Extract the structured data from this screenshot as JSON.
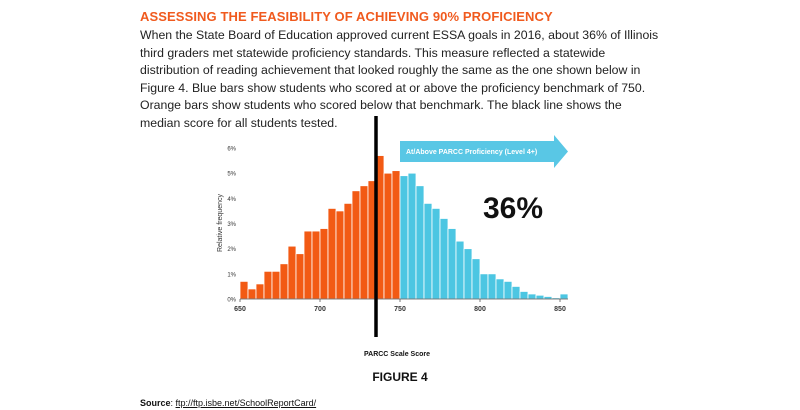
{
  "heading": "ASSESSING THE FEASIBILITY OF ACHIEVING 90% PROFICIENCY",
  "paragraph": "When the State Board of Education approved current ESSA goals in 2016, about 36% of Illinois third graders met statewide proficiency standards. This measure reflected a statewide distribution of reading achievement that looked roughly the same as the one shown below in Figure 4. Blue bars show students who scored at or above the proficiency benchmark of 750. Orange bars show students who scored below that benchmark. The black line shows the median score for all students tested.",
  "figure_label": "FIGURE 4",
  "source": {
    "label": "Source",
    "link_text": "ftp://ftp.isbe.net/SchoolReportCard/"
  },
  "colors": {
    "below": "#f25a14",
    "above": "#4cc6e2",
    "arrow": "#59c7e5",
    "median": "#000000",
    "heading": "#f05a1e"
  },
  "chart_data": {
    "type": "bar",
    "title": "",
    "xlabel": "PARCC Scale Score",
    "ylabel": "Relative frequency",
    "xlim": [
      650,
      855
    ],
    "ylim": [
      0,
      6
    ],
    "x_ticks": [
      650,
      700,
      750,
      800,
      850
    ],
    "y_ticks": [
      0,
      1,
      2,
      3,
      4,
      5,
      6
    ],
    "y_tick_labels": [
      "0%",
      "1%",
      "2%",
      "3%",
      "4%",
      "5%",
      "6%"
    ],
    "bin_width": 5,
    "benchmark": 750,
    "median": 735,
    "arrow_label": "At/Above PARCC Proficiency  (Level 4+)",
    "annotation": "36%",
    "grid": false,
    "bins": [
      {
        "start": 650,
        "value": 0.7,
        "group": "below"
      },
      {
        "start": 655,
        "value": 0.4,
        "group": "below"
      },
      {
        "start": 660,
        "value": 0.6,
        "group": "below"
      },
      {
        "start": 665,
        "value": 1.1,
        "group": "below"
      },
      {
        "start": 670,
        "value": 1.1,
        "group": "below"
      },
      {
        "start": 675,
        "value": 1.4,
        "group": "below"
      },
      {
        "start": 680,
        "value": 2.1,
        "group": "below"
      },
      {
        "start": 685,
        "value": 1.8,
        "group": "below"
      },
      {
        "start": 690,
        "value": 2.7,
        "group": "below"
      },
      {
        "start": 695,
        "value": 2.7,
        "group": "below"
      },
      {
        "start": 700,
        "value": 2.8,
        "group": "below"
      },
      {
        "start": 705,
        "value": 3.6,
        "group": "below"
      },
      {
        "start": 710,
        "value": 3.5,
        "group": "below"
      },
      {
        "start": 715,
        "value": 3.8,
        "group": "below"
      },
      {
        "start": 720,
        "value": 4.3,
        "group": "below"
      },
      {
        "start": 725,
        "value": 4.5,
        "group": "below"
      },
      {
        "start": 730,
        "value": 4.7,
        "group": "below"
      },
      {
        "start": 735,
        "value": 5.7,
        "group": "below"
      },
      {
        "start": 740,
        "value": 5.0,
        "group": "below"
      },
      {
        "start": 745,
        "value": 5.1,
        "group": "below"
      },
      {
        "start": 750,
        "value": 4.9,
        "group": "above"
      },
      {
        "start": 755,
        "value": 5.0,
        "group": "above"
      },
      {
        "start": 760,
        "value": 4.5,
        "group": "above"
      },
      {
        "start": 765,
        "value": 3.8,
        "group": "above"
      },
      {
        "start": 770,
        "value": 3.6,
        "group": "above"
      },
      {
        "start": 775,
        "value": 3.2,
        "group": "above"
      },
      {
        "start": 780,
        "value": 2.8,
        "group": "above"
      },
      {
        "start": 785,
        "value": 2.3,
        "group": "above"
      },
      {
        "start": 790,
        "value": 2.0,
        "group": "above"
      },
      {
        "start": 795,
        "value": 1.6,
        "group": "above"
      },
      {
        "start": 800,
        "value": 1.0,
        "group": "above"
      },
      {
        "start": 805,
        "value": 1.0,
        "group": "above"
      },
      {
        "start": 810,
        "value": 0.8,
        "group": "above"
      },
      {
        "start": 815,
        "value": 0.7,
        "group": "above"
      },
      {
        "start": 820,
        "value": 0.5,
        "group": "above"
      },
      {
        "start": 825,
        "value": 0.3,
        "group": "above"
      },
      {
        "start": 830,
        "value": 0.2,
        "group": "above"
      },
      {
        "start": 835,
        "value": 0.15,
        "group": "above"
      },
      {
        "start": 840,
        "value": 0.1,
        "group": "above"
      },
      {
        "start": 845,
        "value": 0.05,
        "group": "above"
      },
      {
        "start": 850,
        "value": 0.2,
        "group": "above"
      }
    ]
  }
}
